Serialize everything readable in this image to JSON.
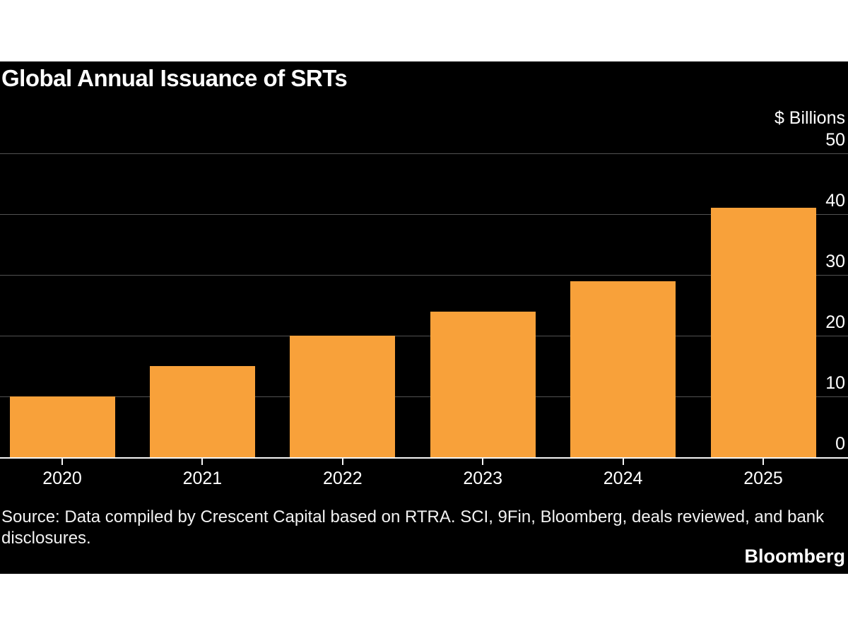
{
  "title": "Global Annual Issuance of SRTs",
  "unit_label": "$ Billions",
  "source": "Source: Data compiled by Crescent Capital based on RTRA. SCI, 9Fin, Bloomberg, deals reviewed, and bank disclosures.",
  "brand": "Bloomberg",
  "colors": {
    "bar": "#F8A13A",
    "card_background": "#000000",
    "page_background": "#FFFFFF",
    "gridline": "#525252",
    "axis_line": "#F5F5F5",
    "text": "#FFFFFF"
  },
  "chart_data": {
    "type": "bar",
    "categories": [
      "2020",
      "2021",
      "2022",
      "2023",
      "2024",
      "2025"
    ],
    "values": [
      10,
      15,
      20,
      24,
      29,
      41
    ],
    "title": "Global Annual Issuance of SRTs",
    "xlabel": "",
    "ylabel": "$ Billions",
    "ylim": [
      0,
      50
    ],
    "yticks": [
      0,
      10,
      20,
      30,
      40,
      50
    ],
    "grid": true,
    "legend": false,
    "axis_side": "right",
    "bar_color": "#F8A13A"
  }
}
